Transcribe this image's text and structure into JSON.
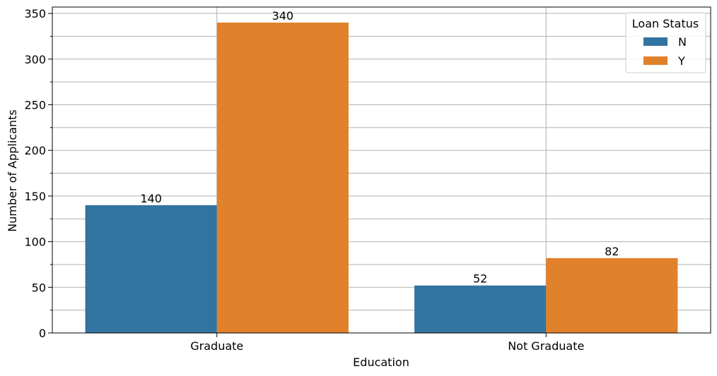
{
  "chart_data": {
    "type": "bar",
    "title": "",
    "xlabel": "Education",
    "ylabel": "Number of Applicants",
    "categories": [
      "Graduate",
      "Not Graduate"
    ],
    "series": [
      {
        "name": "N",
        "values": [
          140,
          52
        ],
        "color": "#3274a1"
      },
      {
        "name": "Y",
        "values": [
          340,
          82
        ],
        "color": "#e1812c"
      }
    ],
    "ylim": [
      0,
      357
    ],
    "yticks": [
      0,
      50,
      100,
      150,
      200,
      250,
      300,
      350
    ],
    "yticks_minor": [
      25,
      75,
      125,
      175,
      225,
      275,
      325
    ],
    "grid": true,
    "legend": {
      "title": "Loan Status",
      "placement": "top-right"
    },
    "data_labels": true
  }
}
